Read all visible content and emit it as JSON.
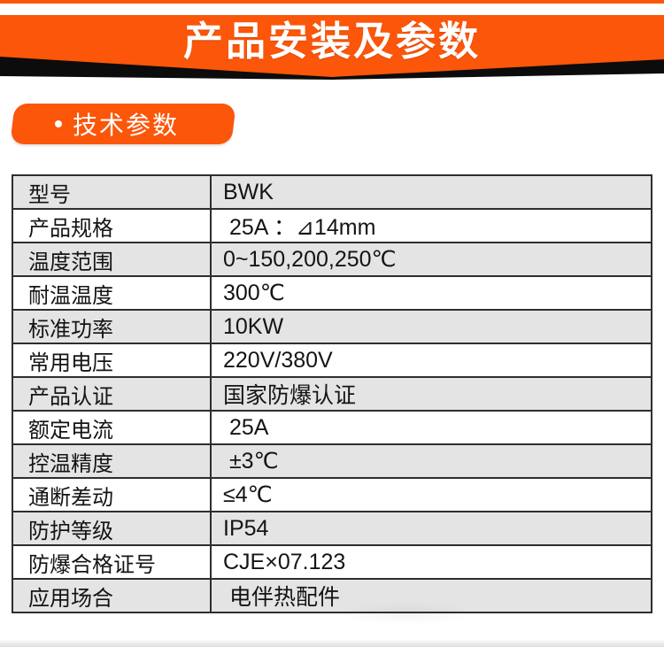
{
  "banner": {
    "title": "产品安装及参数",
    "accent_color": "#fb5609",
    "shadow_color": "#0c0c0c"
  },
  "section_badge": {
    "bullet": "·",
    "label": "技术参数"
  },
  "table": {
    "stripe_color": "#e4e4e4",
    "border_color": "#2e2e2e",
    "rows": [
      {
        "label": "型号",
        "value": "BWK"
      },
      {
        "label": "产品规格",
        "value": " 25A ：⊿14mm"
      },
      {
        "label": "温度范围",
        "value": "0~150,200,250℃"
      },
      {
        "label": "耐温温度",
        "value": "300℃"
      },
      {
        "label": "标准功率",
        "value": "10KW"
      },
      {
        "label": "常用电压",
        "value": "220V/380V"
      },
      {
        "label": "产品认证",
        "value": "国家防爆认证"
      },
      {
        "label": "额定电流",
        "value": " 25A"
      },
      {
        "label": "控温精度",
        "value": " ±3℃"
      },
      {
        "label": "通断差动",
        "value": "≤4℃"
      },
      {
        "label": "防护等级",
        "value": "IP54"
      },
      {
        "label": "防爆合格证号",
        "value": "CJE×07.123"
      },
      {
        "label": "应用场合",
        "value": " 电伴热配件"
      }
    ]
  }
}
